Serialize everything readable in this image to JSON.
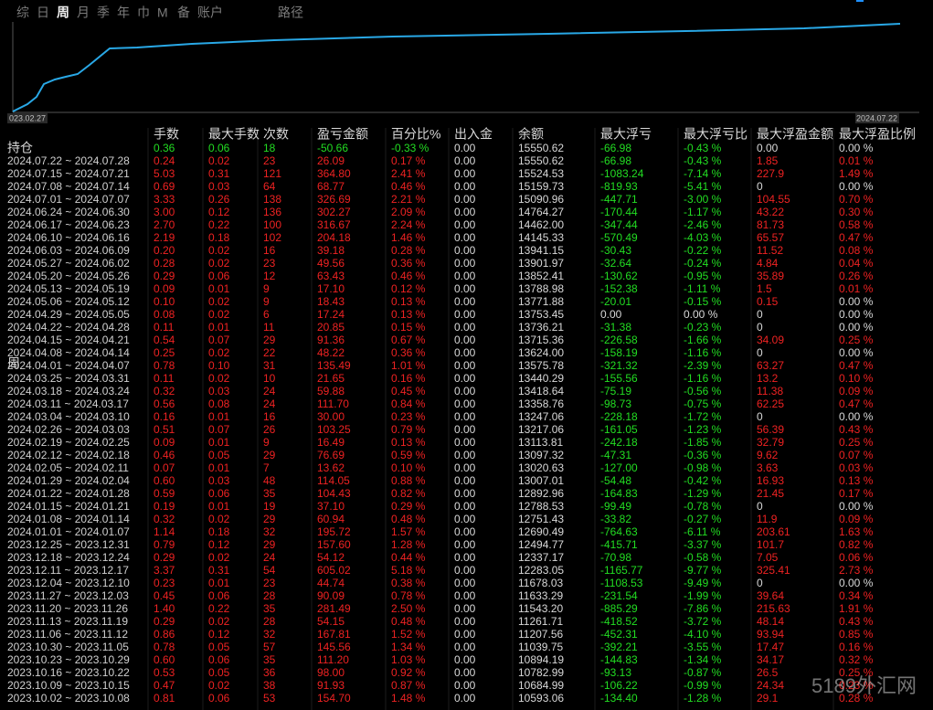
{
  "tabs": [
    "综",
    "日",
    "周",
    "月",
    "季",
    "年",
    "巾",
    "M",
    "备",
    "账户"
  ],
  "path_tab": "路径",
  "selected_tab": "周",
  "curve": {
    "start_label": "023.02.27",
    "end_label": "2024.07.22"
  },
  "table": {
    "columns": [
      "手数",
      "最大手数",
      "次数",
      "盈亏金额",
      "百分比%",
      "出入金",
      "余额",
      "最大浮亏",
      "最大浮亏比",
      "最大浮盈金额",
      "最大浮盈比例"
    ],
    "holding": {
      "label": "持仓",
      "cells": [
        "0.36",
        "0.06",
        "18",
        "-50.66",
        "-0.33 %",
        "0.00",
        "15550.62",
        "-66.98",
        "-0.43 %",
        "0.00",
        "0.00 %"
      ]
    },
    "inline_label": "周",
    "rows": [
      [
        "2024.07.22 ~ 2024.07.28",
        "0.24",
        "0.02",
        "23",
        "26.09",
        "0.17 %",
        "0.00",
        "15550.62",
        "-66.98",
        "-0.43 %",
        "1.85",
        "0.01 %"
      ],
      [
        "2024.07.15 ~ 2024.07.21",
        "5.03",
        "0.31",
        "121",
        "364.80",
        "2.41 %",
        "0.00",
        "15524.53",
        "-1083.24",
        "-7.14 %",
        "227.9",
        "1.49 %"
      ],
      [
        "2024.07.08 ~ 2024.07.14",
        "0.69",
        "0.03",
        "64",
        "68.77",
        "0.46 %",
        "0.00",
        "15159.73",
        "-819.93",
        "-5.41 %",
        "0",
        "0.00 %"
      ],
      [
        "2024.07.01 ~ 2024.07.07",
        "3.33",
        "0.26",
        "138",
        "326.69",
        "2.21 %",
        "0.00",
        "15090.96",
        "-447.71",
        "-3.00 %",
        "104.55",
        "0.70 %"
      ],
      [
        "2024.06.24 ~ 2024.06.30",
        "3.00",
        "0.12",
        "136",
        "302.27",
        "2.09 %",
        "0.00",
        "14764.27",
        "-170.44",
        "-1.17 %",
        "43.22",
        "0.30 %"
      ],
      [
        "2024.06.17 ~ 2024.06.23",
        "2.70",
        "0.22",
        "100",
        "316.67",
        "2.24 %",
        "0.00",
        "14462.00",
        "-347.44",
        "-2.46 %",
        "81.73",
        "0.58 %"
      ],
      [
        "2024.06.10 ~ 2024.06.16",
        "2.19",
        "0.18",
        "102",
        "204.18",
        "1.46 %",
        "0.00",
        "14145.33",
        "-570.49",
        "-4.03 %",
        "65.57",
        "0.47 %"
      ],
      [
        "2024.06.03 ~ 2024.06.09",
        "0.20",
        "0.02",
        "16",
        "39.18",
        "0.28 %",
        "0.00",
        "13941.15",
        "-30.43",
        "-0.22 %",
        "11.52",
        "0.08 %"
      ],
      [
        "2024.05.27 ~ 2024.06.02",
        "0.28",
        "0.02",
        "23",
        "49.56",
        "0.36 %",
        "0.00",
        "13901.97",
        "-32.64",
        "-0.24 %",
        "4.84",
        "0.04 %"
      ],
      [
        "2024.05.20 ~ 2024.05.26",
        "0.29",
        "0.06",
        "12",
        "63.43",
        "0.46 %",
        "0.00",
        "13852.41",
        "-130.62",
        "-0.95 %",
        "35.89",
        "0.26 %"
      ],
      [
        "2024.05.13 ~ 2024.05.19",
        "0.09",
        "0.01",
        "9",
        "17.10",
        "0.12 %",
        "0.00",
        "13788.98",
        "-152.38",
        "-1.11 %",
        "1.5",
        "0.01 %"
      ],
      [
        "2024.05.06 ~ 2024.05.12",
        "0.10",
        "0.02",
        "9",
        "18.43",
        "0.13 %",
        "0.00",
        "13771.88",
        "-20.01",
        "-0.15 %",
        "0.15",
        "0.00 %"
      ],
      [
        "2024.04.29 ~ 2024.05.05",
        "0.08",
        "0.02",
        "6",
        "17.24",
        "0.13 %",
        "0.00",
        "13753.45",
        "0.00",
        "0.00 %",
        "0",
        "0.00 %"
      ],
      [
        "2024.04.22 ~ 2024.04.28",
        "0.11",
        "0.01",
        "11",
        "20.85",
        "0.15 %",
        "0.00",
        "13736.21",
        "-31.38",
        "-0.23 %",
        "0",
        "0.00 %"
      ],
      [
        "2024.04.15 ~ 2024.04.21",
        "0.54",
        "0.07",
        "29",
        "91.36",
        "0.67 %",
        "0.00",
        "13715.36",
        "-226.58",
        "-1.66 %",
        "34.09",
        "0.25 %"
      ],
      [
        "2024.04.08 ~ 2024.04.14",
        "0.25",
        "0.02",
        "22",
        "48.22",
        "0.36 %",
        "0.00",
        "13624.00",
        "-158.19",
        "-1.16 %",
        "0",
        "0.00 %"
      ],
      [
        "2024.04.01 ~ 2024.04.07",
        "0.78",
        "0.10",
        "31",
        "135.49",
        "1.01 %",
        "0.00",
        "13575.78",
        "-321.32",
        "-2.39 %",
        "63.27",
        "0.47 %"
      ],
      [
        "2024.03.25 ~ 2024.03.31",
        "0.11",
        "0.02",
        "10",
        "21.65",
        "0.16 %",
        "0.00",
        "13440.29",
        "-155.56",
        "-1.16 %",
        "13.2",
        "0.10 %"
      ],
      [
        "2024.03.18 ~ 2024.03.24",
        "0.32",
        "0.03",
        "24",
        "59.88",
        "0.45 %",
        "0.00",
        "13418.64",
        "-75.19",
        "-0.56 %",
        "11.38",
        "0.09 %"
      ],
      [
        "2024.03.11 ~ 2024.03.17",
        "0.56",
        "0.08",
        "24",
        "111.70",
        "0.84 %",
        "0.00",
        "13358.76",
        "-98.73",
        "-0.75 %",
        "62.25",
        "0.47 %"
      ],
      [
        "2024.03.04 ~ 2024.03.10",
        "0.16",
        "0.01",
        "16",
        "30.00",
        "0.23 %",
        "0.00",
        "13247.06",
        "-228.18",
        "-1.72 %",
        "0",
        "0.00 %"
      ],
      [
        "2024.02.26 ~ 2024.03.03",
        "0.51",
        "0.07",
        "26",
        "103.25",
        "0.79 %",
        "0.00",
        "13217.06",
        "-161.05",
        "-1.23 %",
        "56.39",
        "0.43 %"
      ],
      [
        "2024.02.19 ~ 2024.02.25",
        "0.09",
        "0.01",
        "9",
        "16.49",
        "0.13 %",
        "0.00",
        "13113.81",
        "-242.18",
        "-1.85 %",
        "32.79",
        "0.25 %"
      ],
      [
        "2024.02.12 ~ 2024.02.18",
        "0.46",
        "0.05",
        "29",
        "76.69",
        "0.59 %",
        "0.00",
        "13097.32",
        "-47.31",
        "-0.36 %",
        "9.62",
        "0.07 %"
      ],
      [
        "2024.02.05 ~ 2024.02.11",
        "0.07",
        "0.01",
        "7",
        "13.62",
        "0.10 %",
        "0.00",
        "13020.63",
        "-127.00",
        "-0.98 %",
        "3.63",
        "0.03 %"
      ],
      [
        "2024.01.29 ~ 2024.02.04",
        "0.60",
        "0.03",
        "48",
        "114.05",
        "0.88 %",
        "0.00",
        "13007.01",
        "-54.48",
        "-0.42 %",
        "16.93",
        "0.13 %"
      ],
      [
        "2024.01.22 ~ 2024.01.28",
        "0.59",
        "0.06",
        "35",
        "104.43",
        "0.82 %",
        "0.00",
        "12892.96",
        "-164.83",
        "-1.29 %",
        "21.45",
        "0.17 %"
      ],
      [
        "2024.01.15 ~ 2024.01.21",
        "0.19",
        "0.01",
        "19",
        "37.10",
        "0.29 %",
        "0.00",
        "12788.53",
        "-99.49",
        "-0.78 %",
        "0",
        "0.00 %"
      ],
      [
        "2024.01.08 ~ 2024.01.14",
        "0.32",
        "0.02",
        "29",
        "60.94",
        "0.48 %",
        "0.00",
        "12751.43",
        "-33.82",
        "-0.27 %",
        "11.9",
        "0.09 %"
      ],
      [
        "2024.01.01 ~ 2024.01.07",
        "1.14",
        "0.18",
        "32",
        "195.72",
        "1.57 %",
        "0.00",
        "12690.49",
        "-764.63",
        "-6.11 %",
        "203.61",
        "1.63 %"
      ],
      [
        "2023.12.25 ~ 2023.12.31",
        "0.79",
        "0.12",
        "29",
        "157.60",
        "1.28 %",
        "0.00",
        "12494.77",
        "-415.71",
        "-3.37 %",
        "101.7",
        "0.82 %"
      ],
      [
        "2023.12.18 ~ 2023.12.24",
        "0.29",
        "0.02",
        "24",
        "54.12",
        "0.44 %",
        "0.00",
        "12337.17",
        "-70.98",
        "-0.58 %",
        "7.05",
        "0.06 %"
      ],
      [
        "2023.12.11 ~ 2023.12.17",
        "3.37",
        "0.31",
        "54",
        "605.02",
        "5.18 %",
        "0.00",
        "12283.05",
        "-1165.77",
        "-9.77 %",
        "325.41",
        "2.73 %"
      ],
      [
        "2023.12.04 ~ 2023.12.10",
        "0.23",
        "0.01",
        "23",
        "44.74",
        "0.38 %",
        "0.00",
        "11678.03",
        "-1108.53",
        "-9.49 %",
        "0",
        "0.00 %"
      ],
      [
        "2023.11.27 ~ 2023.12.03",
        "0.45",
        "0.06",
        "28",
        "90.09",
        "0.78 %",
        "0.00",
        "11633.29",
        "-231.54",
        "-1.99 %",
        "39.64",
        "0.34 %"
      ],
      [
        "2023.11.20 ~ 2023.11.26",
        "1.40",
        "0.22",
        "35",
        "281.49",
        "2.50 %",
        "0.00",
        "11543.20",
        "-885.29",
        "-7.86 %",
        "215.63",
        "1.91 %"
      ],
      [
        "2023.11.13 ~ 2023.11.19",
        "0.29",
        "0.02",
        "28",
        "54.15",
        "0.48 %",
        "0.00",
        "11261.71",
        "-418.52",
        "-3.72 %",
        "48.14",
        "0.43 %"
      ],
      [
        "2023.11.06 ~ 2023.11.12",
        "0.86",
        "0.12",
        "32",
        "167.81",
        "1.52 %",
        "0.00",
        "11207.56",
        "-452.31",
        "-4.10 %",
        "93.94",
        "0.85 %"
      ],
      [
        "2023.10.30 ~ 2023.11.05",
        "0.78",
        "0.05",
        "57",
        "145.56",
        "1.34 %",
        "0.00",
        "11039.75",
        "-392.21",
        "-3.55 %",
        "17.47",
        "0.16 %"
      ],
      [
        "2023.10.23 ~ 2023.10.29",
        "0.60",
        "0.06",
        "35",
        "111.20",
        "1.03 %",
        "0.00",
        "10894.19",
        "-144.83",
        "-1.34 %",
        "34.17",
        "0.32 %"
      ],
      [
        "2023.10.16 ~ 2023.10.22",
        "0.53",
        "0.05",
        "36",
        "98.00",
        "0.92 %",
        "0.00",
        "10782.99",
        "-93.13",
        "-0.87 %",
        "26.5",
        "0.25 %"
      ],
      [
        "2023.10.09 ~ 2023.10.15",
        "0.47",
        "0.02",
        "38",
        "91.93",
        "0.87 %",
        "0.00",
        "10684.99",
        "-106.22",
        "-0.99 %",
        "24.34",
        "0.23 %"
      ],
      [
        "2023.10.02 ~ 2023.10.08",
        "0.81",
        "0.06",
        "53",
        "154.70",
        "1.48 %",
        "0.00",
        "10593.06",
        "-134.40",
        "-1.28 %",
        "29.1",
        "0.28 %"
      ]
    ]
  },
  "watermark": "5189外汇网"
}
